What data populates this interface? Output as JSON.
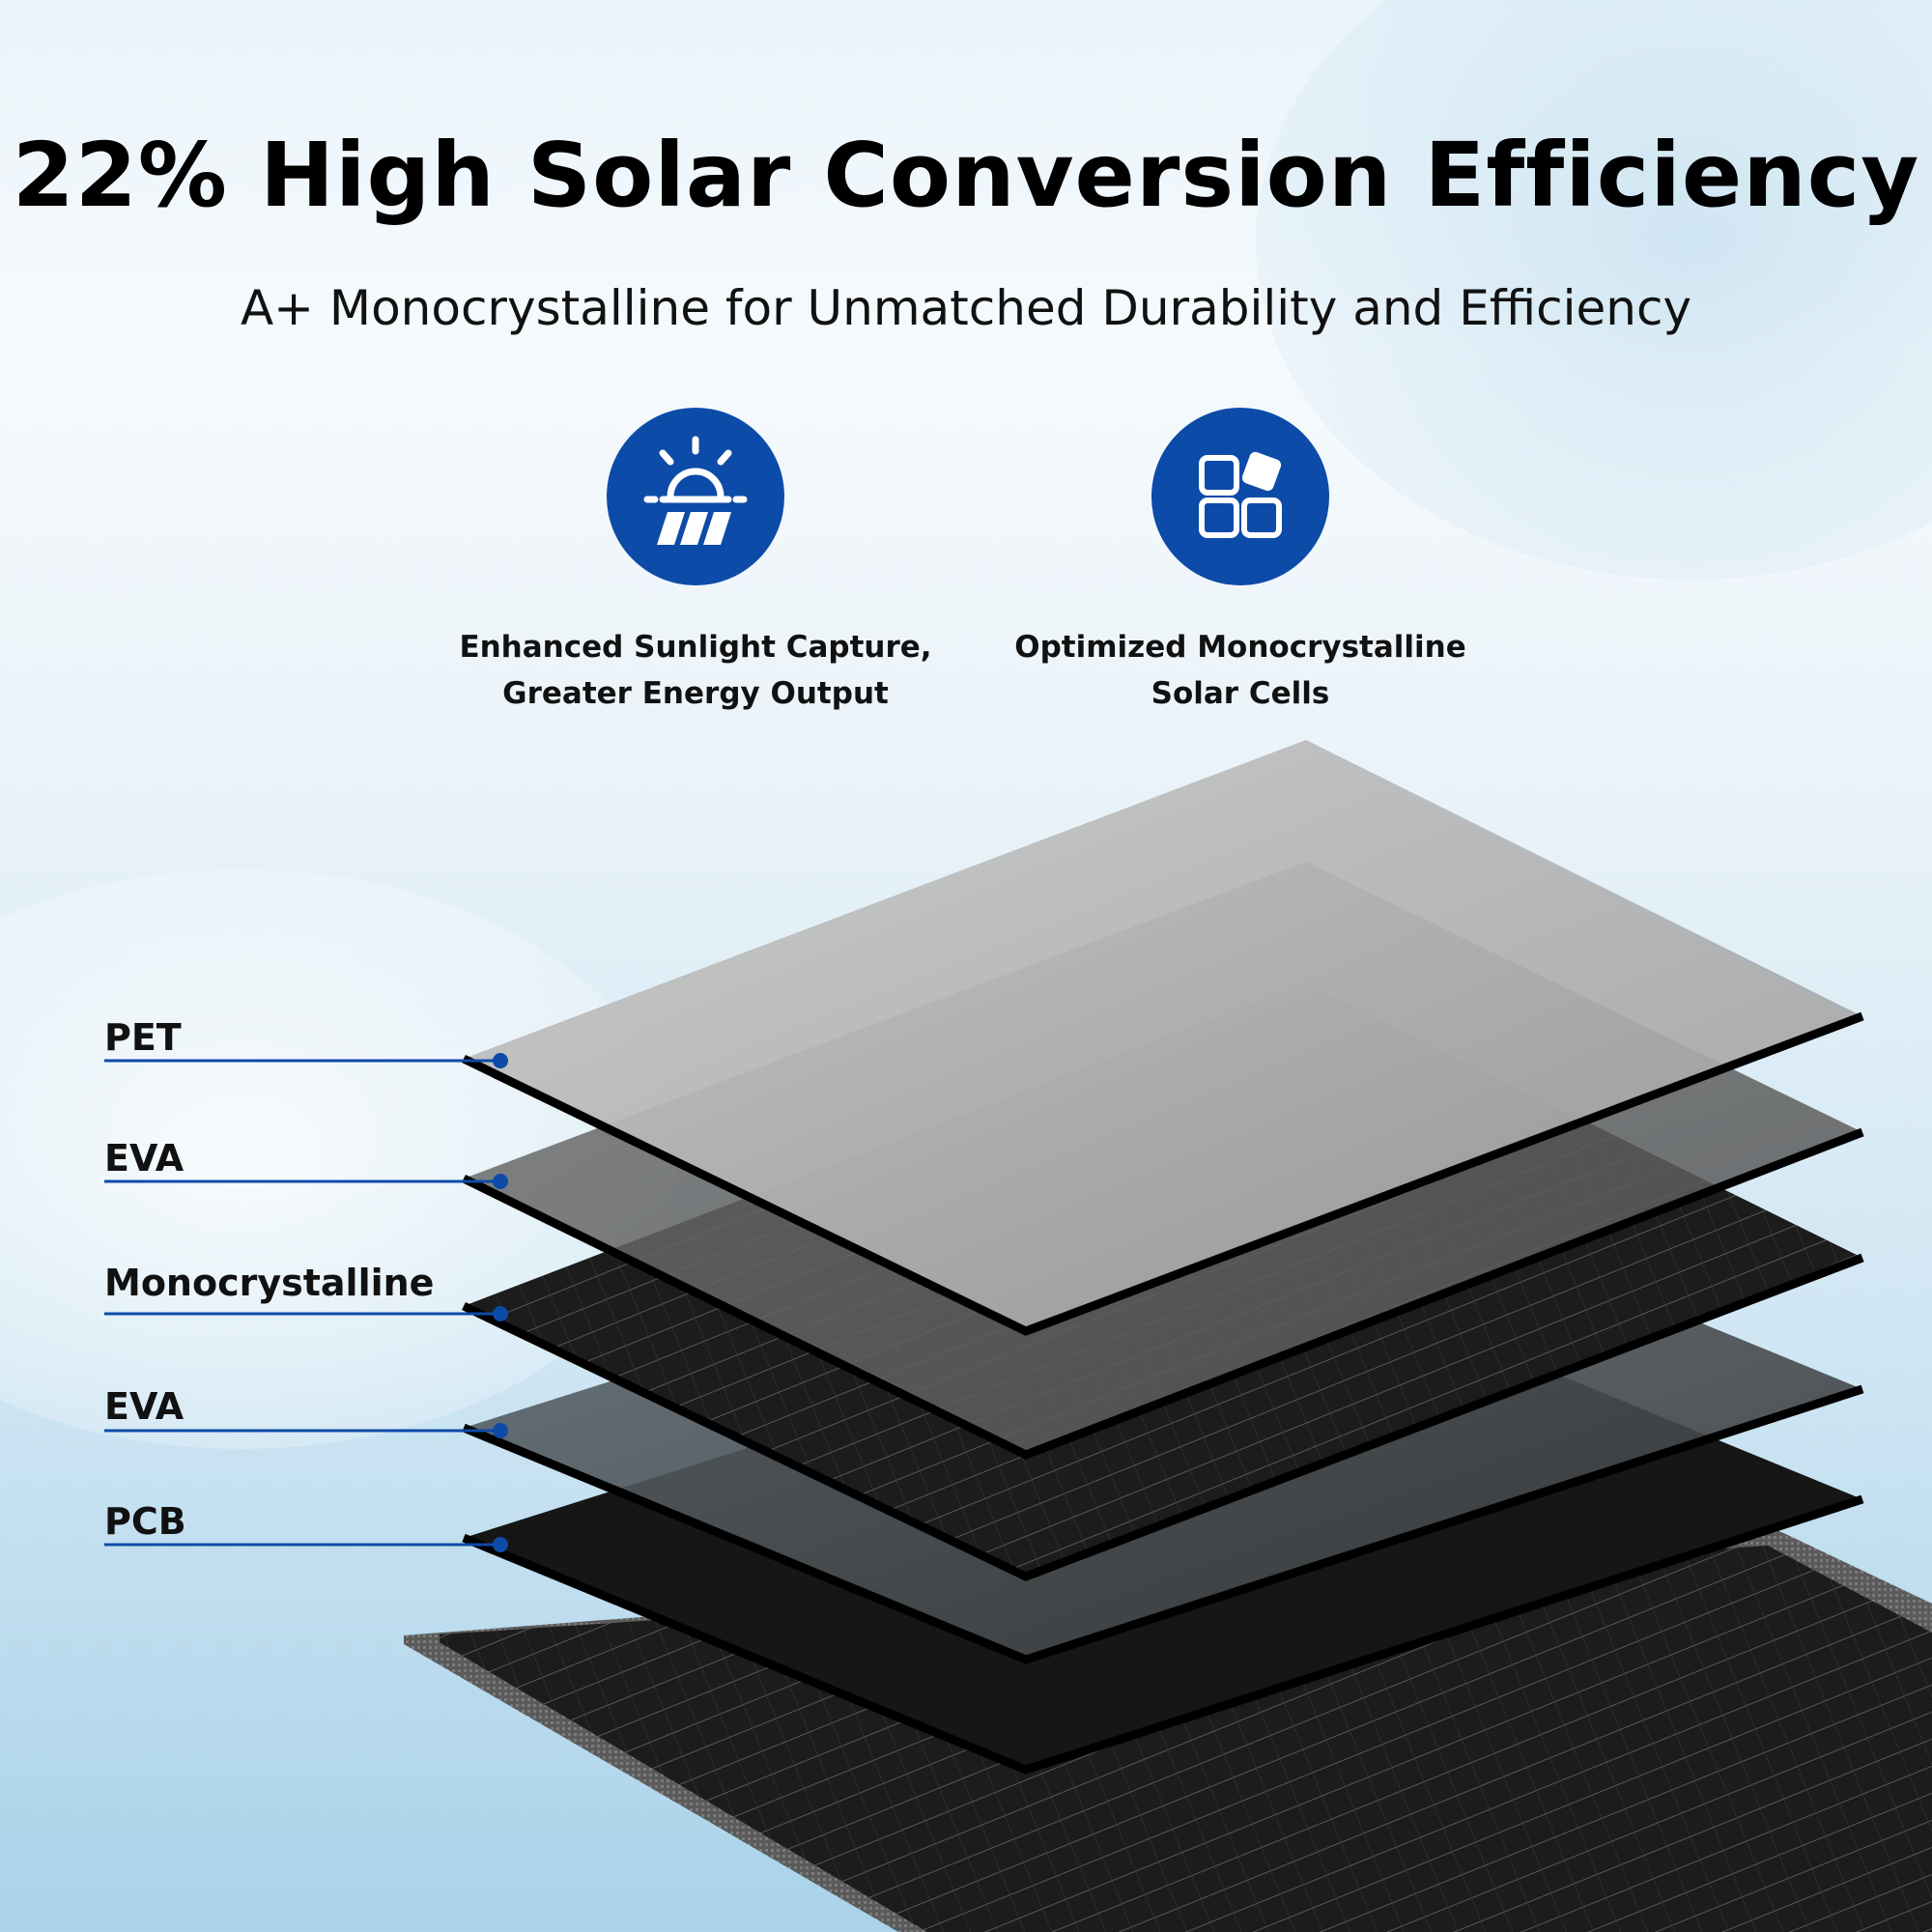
{
  "headline": "22% High Solar Conversion Efficiency",
  "subheadline": "A+ Monocrystalline for Unmatched Durability and Efficiency",
  "features": [
    {
      "icon": "solar-panel-sun-icon",
      "caption": "Enhanced Sunlight Capture,\nGreater Energy Output"
    },
    {
      "icon": "cells-grid-icon",
      "caption": "Optimized Monocrystalline\nSolar Cells"
    }
  ],
  "layers": [
    "PET",
    "EVA",
    "Monocrystalline",
    "EVA",
    "PCB"
  ],
  "colors": {
    "accent": "#0d4ba8",
    "text": "#000000"
  }
}
